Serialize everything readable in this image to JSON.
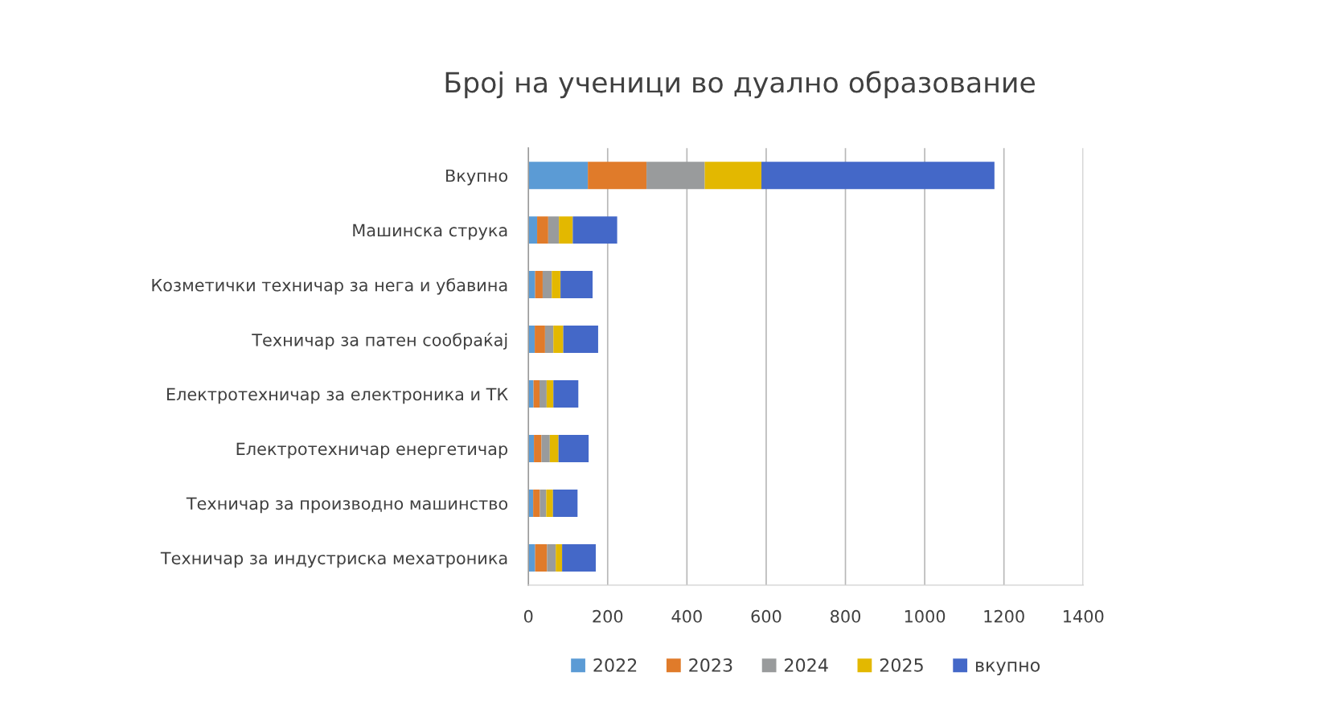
{
  "chart_data": {
    "type": "bar",
    "orientation": "horizontal",
    "stacked": true,
    "title": "Број на ученици во дуално образование",
    "categories": [
      "Вкупно",
      "Машинска струка",
      "Козметички техничар за нега и убавина",
      "Техничар за патен сообраќај",
      "Електротехничар за електроника и ТК",
      "Електротехничар енергетичар",
      "Техничар за производно машинство",
      "Техничар за индустриска мехатроника"
    ],
    "series": [
      {
        "name": "2022",
        "color": "#5b9bd5",
        "values": [
          150,
          22,
          17,
          16,
          13,
          14,
          12,
          17
        ]
      },
      {
        "name": "2023",
        "color": "#e07b2a",
        "values": [
          148,
          28,
          19,
          26,
          15,
          19,
          17,
          30
        ]
      },
      {
        "name": "2024",
        "color": "#999b9c",
        "values": [
          147,
          27,
          23,
          21,
          18,
          21,
          16,
          22
        ]
      },
      {
        "name": "2025",
        "color": "#e3b800",
        "values": [
          143,
          35,
          22,
          25,
          17,
          22,
          17,
          16
        ]
      },
      {
        "name": "вкупно",
        "color": "#4468c8",
        "values": [
          588,
          112,
          81,
          88,
          63,
          76,
          62,
          85
        ]
      }
    ],
    "xlim": [
      0,
      1400
    ],
    "xticks": [
      0,
      200,
      400,
      600,
      800,
      1000,
      1200,
      1400
    ],
    "grid": "x",
    "legend": "bottom"
  }
}
